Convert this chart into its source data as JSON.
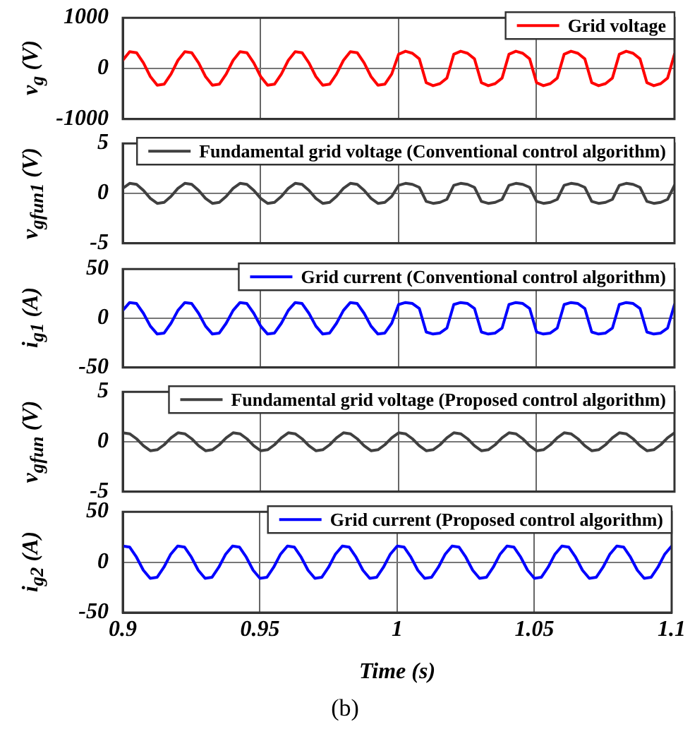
{
  "chart_data": [
    {
      "type": "line",
      "ylabel": "v$_{g}$ (V)",
      "xlim": [
        0.9,
        1.1
      ],
      "xticks": [
        0.9,
        0.95,
        1,
        1.05,
        1.1
      ],
      "ylim": [
        -1000,
        1000
      ],
      "yticks": [
        -1000,
        0,
        1000
      ],
      "grid": true,
      "legend": "top right",
      "tick_labels": "y",
      "marker": "none",
      "x": [
        0.9,
        0.9025,
        0.905,
        0.9075,
        0.91,
        0.9125,
        0.915,
        0.9175,
        0.92,
        0.9225,
        0.925,
        0.9275,
        0.93,
        0.9325,
        0.935,
        0.9375,
        0.94,
        0.9425,
        0.945,
        0.9475,
        0.95,
        0.9525,
        0.955,
        0.9575,
        0.96,
        0.9625,
        0.965,
        0.9675,
        0.97,
        0.9725,
        0.975,
        0.9775,
        0.98,
        0.9825,
        0.985,
        0.9875,
        0.99,
        0.9925,
        0.995,
        0.9975,
        1,
        1.0025,
        1.005,
        1.0075,
        1.01,
        1.0125,
        1.015,
        1.0175,
        1.02,
        1.0225,
        1.025,
        1.0275,
        1.03,
        1.0325,
        1.035,
        1.0375,
        1.04,
        1.0425,
        1.045,
        1.0475,
        1.05,
        1.0525,
        1.055,
        1.0575,
        1.06,
        1.0625,
        1.065,
        1.0675,
        1.07,
        1.0725,
        1.075,
        1.0775,
        1.08,
        1.0825,
        1.085,
        1.0875,
        1.09,
        1.0925,
        1.095,
        1.0975,
        1.1
      ],
      "series": [
        {
          "name": "Grid voltage",
          "color": "#ff0000",
          "values": [
            160,
            330,
            310,
            110,
            -160,
            -330,
            -310,
            -110,
            160,
            330,
            310,
            110,
            -160,
            -330,
            -310,
            -110,
            160,
            330,
            310,
            110,
            -160,
            -330,
            -310,
            -110,
            160,
            330,
            310,
            110,
            -160,
            -330,
            -310,
            -110,
            160,
            330,
            310,
            110,
            -160,
            -330,
            -310,
            -110,
            280,
            340,
            300,
            190,
            -280,
            -340,
            -300,
            -190,
            280,
            340,
            300,
            190,
            -280,
            -340,
            -300,
            -190,
            280,
            340,
            300,
            190,
            -280,
            -340,
            -300,
            -190,
            280,
            340,
            300,
            190,
            -280,
            -340,
            -300,
            -190,
            280,
            340,
            300,
            190,
            -280,
            -340,
            -300,
            -190,
            280
          ]
        }
      ]
    },
    {
      "type": "line",
      "ylabel": "v$_{gfun1}$ (V)",
      "xlim": [
        0.9,
        1.1
      ],
      "xticks": [
        0.9,
        0.95,
        1,
        1.05,
        1.1
      ],
      "ylim": [
        -5,
        5
      ],
      "yticks": [
        -5,
        0,
        5
      ],
      "grid": true,
      "legend": "top right",
      "tick_labels": "y",
      "marker": "none",
      "x": [
        0.9,
        0.9025,
        0.905,
        0.9075,
        0.91,
        0.9125,
        0.915,
        0.9175,
        0.92,
        0.9225,
        0.925,
        0.9275,
        0.93,
        0.9325,
        0.935,
        0.9375,
        0.94,
        0.9425,
        0.945,
        0.9475,
        0.95,
        0.9525,
        0.955,
        0.9575,
        0.96,
        0.9625,
        0.965,
        0.9675,
        0.97,
        0.9725,
        0.975,
        0.9775,
        0.98,
        0.9825,
        0.985,
        0.9875,
        0.99,
        0.9925,
        0.995,
        0.9975,
        1,
        1.0025,
        1.005,
        1.0075,
        1.01,
        1.0125,
        1.015,
        1.0175,
        1.02,
        1.0225,
        1.025,
        1.0275,
        1.03,
        1.0325,
        1.035,
        1.0375,
        1.04,
        1.0425,
        1.045,
        1.0475,
        1.05,
        1.0525,
        1.055,
        1.0575,
        1.06,
        1.0625,
        1.065,
        1.0675,
        1.07,
        1.0725,
        1.075,
        1.0775,
        1.08,
        1.0825,
        1.085,
        1.0875,
        1.09,
        1.0925,
        1.095,
        1.0975,
        1.1
      ],
      "series": [
        {
          "name": "Fundamental grid voltage (Conventional control algorithm)",
          "color": "#404040",
          "values": [
            0.5,
            1,
            0.9,
            0.3,
            -0.5,
            -1,
            -0.9,
            -0.3,
            0.5,
            1,
            0.9,
            0.3,
            -0.5,
            -1,
            -0.9,
            -0.3,
            0.5,
            1,
            0.9,
            0.3,
            -0.5,
            -1,
            -0.9,
            -0.3,
            0.5,
            1,
            0.9,
            0.3,
            -0.5,
            -1,
            -0.9,
            -0.3,
            0.5,
            1,
            0.9,
            0.3,
            -0.5,
            -1,
            -0.9,
            -0.3,
            0.8,
            1,
            0.9,
            0.6,
            -0.8,
            -1,
            -0.9,
            -0.6,
            0.8,
            1,
            0.9,
            0.6,
            -0.8,
            -1,
            -0.9,
            -0.6,
            0.8,
            1,
            0.9,
            0.6,
            -0.8,
            -1,
            -0.9,
            -0.6,
            0.8,
            1,
            0.9,
            0.6,
            -0.8,
            -1,
            -0.9,
            -0.6,
            0.8,
            1,
            0.9,
            0.6,
            -0.8,
            -1,
            -0.9,
            -0.6,
            0.8
          ]
        }
      ]
    },
    {
      "type": "line",
      "ylabel": "i$_{g1}$ (A)",
      "xlim": [
        0.9,
        1.1
      ],
      "xticks": [
        0.9,
        0.95,
        1,
        1.05,
        1.1
      ],
      "ylim": [
        -50,
        50
      ],
      "yticks": [
        -50,
        0,
        50
      ],
      "grid": true,
      "legend": "top right",
      "tick_labels": "y",
      "marker": "none",
      "x": [
        0.9,
        0.9025,
        0.905,
        0.9075,
        0.91,
        0.9125,
        0.915,
        0.9175,
        0.92,
        0.9225,
        0.925,
        0.9275,
        0.93,
        0.9325,
        0.935,
        0.9375,
        0.94,
        0.9425,
        0.945,
        0.9475,
        0.95,
        0.9525,
        0.955,
        0.9575,
        0.96,
        0.9625,
        0.965,
        0.9675,
        0.97,
        0.9725,
        0.975,
        0.9775,
        0.98,
        0.9825,
        0.985,
        0.9875,
        0.99,
        0.9925,
        0.995,
        0.9975,
        1,
        1.0025,
        1.005,
        1.0075,
        1.01,
        1.0125,
        1.015,
        1.0175,
        1.02,
        1.0225,
        1.025,
        1.0275,
        1.03,
        1.0325,
        1.035,
        1.0375,
        1.04,
        1.0425,
        1.045,
        1.0475,
        1.05,
        1.0525,
        1.055,
        1.0575,
        1.06,
        1.0625,
        1.065,
        1.0675,
        1.07,
        1.0725,
        1.075,
        1.0775,
        1.08,
        1.0825,
        1.085,
        1.0875,
        1.09,
        1.0925,
        1.095,
        1.0975,
        1.1
      ],
      "series": [
        {
          "name": "Grid current (Conventional control algorithm)",
          "color": "#0000ff",
          "values": [
            8,
            16,
            15,
            5,
            -8,
            -16,
            -15,
            -5,
            8,
            16,
            15,
            5,
            -8,
            -16,
            -15,
            -5,
            8,
            16,
            15,
            5,
            -8,
            -16,
            -15,
            -5,
            8,
            16,
            15,
            5,
            -8,
            -16,
            -15,
            -5,
            8,
            16,
            15,
            5,
            -8,
            -16,
            -15,
            -5,
            14,
            16,
            15,
            10,
            -14,
            -16,
            -15,
            -10,
            14,
            16,
            15,
            10,
            -14,
            -16,
            -15,
            -10,
            14,
            16,
            15,
            10,
            -14,
            -16,
            -15,
            -10,
            14,
            16,
            15,
            10,
            -14,
            -16,
            -15,
            -10,
            14,
            16,
            15,
            10,
            -14,
            -16,
            -15,
            -10,
            14
          ]
        }
      ]
    },
    {
      "type": "line",
      "ylabel": "v$_{gfun}$ (V)",
      "xlim": [
        0.9,
        1.1
      ],
      "xticks": [
        0.9,
        0.95,
        1,
        1.05,
        1.1
      ],
      "ylim": [
        -5,
        5
      ],
      "yticks": [
        -5,
        0,
        5
      ],
      "grid": true,
      "legend": "top right",
      "tick_labels": "y",
      "marker": "none",
      "x": [
        0.9,
        0.9025,
        0.905,
        0.9075,
        0.91,
        0.9125,
        0.915,
        0.9175,
        0.92,
        0.9225,
        0.925,
        0.9275,
        0.93,
        0.9325,
        0.935,
        0.9375,
        0.94,
        0.9425,
        0.945,
        0.9475,
        0.95,
        0.9525,
        0.955,
        0.9575,
        0.96,
        0.9625,
        0.965,
        0.9675,
        0.97,
        0.9725,
        0.975,
        0.9775,
        0.98,
        0.9825,
        0.985,
        0.9875,
        0.99,
        0.9925,
        0.995,
        0.9975,
        1,
        1.0025,
        1.005,
        1.0075,
        1.01,
        1.0125,
        1.015,
        1.0175,
        1.02,
        1.0225,
        1.025,
        1.0275,
        1.03,
        1.0325,
        1.035,
        1.0375,
        1.04,
        1.0425,
        1.045,
        1.0475,
        1.05,
        1.0525,
        1.055,
        1.0575,
        1.06,
        1.0625,
        1.065,
        1.0675,
        1.07,
        1.0725,
        1.075,
        1.0775,
        1.08,
        1.0825,
        1.085,
        1.0875,
        1.09,
        1.0925,
        1.095,
        1.0975,
        1.1
      ],
      "series": [
        {
          "name": "Fundamental grid voltage (Proposed control algorithm)",
          "color": "#404040",
          "values": [
            0.9,
            0.8,
            0.3,
            -0.4,
            -0.9,
            -0.8,
            -0.3,
            0.4,
            0.9,
            0.8,
            0.3,
            -0.4,
            -0.9,
            -0.8,
            -0.3,
            0.4,
            0.9,
            0.8,
            0.3,
            -0.4,
            -0.9,
            -0.8,
            -0.3,
            0.4,
            0.9,
            0.8,
            0.3,
            -0.4,
            -0.9,
            -0.8,
            -0.3,
            0.4,
            0.9,
            0.8,
            0.3,
            -0.4,
            -0.9,
            -0.8,
            -0.3,
            0.4,
            0.9,
            0.8,
            0.3,
            -0.4,
            -0.9,
            -0.8,
            -0.3,
            0.4,
            0.9,
            0.8,
            0.3,
            -0.4,
            -0.9,
            -0.8,
            -0.3,
            0.4,
            0.9,
            0.8,
            0.3,
            -0.4,
            -0.9,
            -0.8,
            -0.3,
            0.4,
            0.9,
            0.8,
            0.3,
            -0.4,
            -0.9,
            -0.8,
            -0.3,
            0.4,
            0.9,
            0.8,
            0.3,
            -0.4,
            -0.9,
            -0.8,
            -0.3,
            0.4,
            0.9
          ]
        }
      ]
    },
    {
      "type": "line",
      "ylabel": "i$_{g2}$ (A)",
      "xlabel": "Time (s)",
      "xlim": [
        0.9,
        1.1
      ],
      "xticks": [
        0.9,
        0.95,
        1,
        1.05,
        1.1
      ],
      "ylim": [
        -50,
        50
      ],
      "yticks": [
        -50,
        0,
        50
      ],
      "grid": true,
      "legend": "top right",
      "marker": "none",
      "annotations": [
        "(b)"
      ],
      "x": [
        0.9,
        0.9025,
        0.905,
        0.9075,
        0.91,
        0.9125,
        0.915,
        0.9175,
        0.92,
        0.9225,
        0.925,
        0.9275,
        0.93,
        0.9325,
        0.935,
        0.9375,
        0.94,
        0.9425,
        0.945,
        0.9475,
        0.95,
        0.9525,
        0.955,
        0.9575,
        0.96,
        0.9625,
        0.965,
        0.9675,
        0.97,
        0.9725,
        0.975,
        0.9775,
        0.98,
        0.9825,
        0.985,
        0.9875,
        0.99,
        0.9925,
        0.995,
        0.9975,
        1,
        1.0025,
        1.005,
        1.0075,
        1.01,
        1.0125,
        1.015,
        1.0175,
        1.02,
        1.0225,
        1.025,
        1.0275,
        1.03,
        1.0325,
        1.035,
        1.0375,
        1.04,
        1.0425,
        1.045,
        1.0475,
        1.05,
        1.0525,
        1.055,
        1.0575,
        1.06,
        1.0625,
        1.065,
        1.0675,
        1.07,
        1.0725,
        1.075,
        1.0775,
        1.08,
        1.0825,
        1.085,
        1.0875,
        1.09,
        1.0925,
        1.095,
        1.0975,
        1.1
      ],
      "series": [
        {
          "name": "Grid current (Proposed control algorithm)",
          "color": "#0000ff",
          "values": [
            16,
            15,
            5,
            -8,
            -16,
            -15,
            -5,
            8,
            16,
            15,
            5,
            -8,
            -16,
            -15,
            -5,
            8,
            16,
            15,
            5,
            -8,
            -16,
            -15,
            -5,
            8,
            16,
            15,
            5,
            -8,
            -16,
            -15,
            -5,
            8,
            16,
            15,
            5,
            -8,
            -16,
            -15,
            -5,
            8,
            16,
            15,
            5,
            -8,
            -16,
            -15,
            -5,
            8,
            16,
            15,
            5,
            -8,
            -16,
            -15,
            -5,
            8,
            16,
            15,
            5,
            -8,
            -16,
            -15,
            -5,
            8,
            16,
            15,
            5,
            -8,
            -16,
            -15,
            -5,
            8,
            16,
            15,
            5,
            -8,
            -16,
            -15,
            -5,
            8,
            16
          ]
        }
      ]
    }
  ]
}
